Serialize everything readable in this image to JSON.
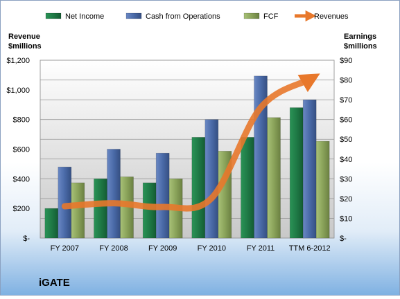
{
  "company": "iGATE",
  "chart_data": {
    "type": "bar",
    "categories": [
      "FY 2007",
      "FY 2008",
      "FY 2009",
      "FY 2010",
      "FY 2011",
      "TTM 6-2012"
    ],
    "bar_axis": {
      "label_line1": "Earnings",
      "label_line2": "$millions",
      "min": 0,
      "max": 90,
      "step": 10,
      "tick_labels": [
        "$-",
        "$10",
        "$20",
        "$30",
        "$40",
        "$50",
        "$60",
        "$70",
        "$80",
        "$90"
      ]
    },
    "line_axis": {
      "label_line1": "Revenue",
      "label_line2": "$millions",
      "min": 0,
      "max": 1200,
      "step": 200,
      "tick_labels": [
        "$-",
        "$200",
        "$400",
        "$600",
        "$800",
        "$1,000",
        "$1,200"
      ]
    },
    "series": [
      {
        "name": "Net Income",
        "kind": "bar",
        "axis": "earnings",
        "color": "#1f7a46",
        "values": [
          15,
          30,
          28,
          51,
          51,
          66
        ]
      },
      {
        "name": "Cash from Operations",
        "kind": "bar",
        "axis": "earnings",
        "color": "#4a6aa8",
        "values": [
          36,
          45,
          43,
          60,
          82,
          70
        ]
      },
      {
        "name": "FCF",
        "kind": "bar",
        "axis": "earnings",
        "color": "#8aa35a",
        "values": [
          28,
          31,
          30,
          44,
          61,
          49
        ]
      },
      {
        "name": "Revenues",
        "kind": "line",
        "axis": "revenue",
        "color": "#e8782b",
        "values": [
          215,
          235,
          210,
          270,
          880,
          1070
        ]
      }
    ],
    "legend_position": "top",
    "grid": true
  }
}
